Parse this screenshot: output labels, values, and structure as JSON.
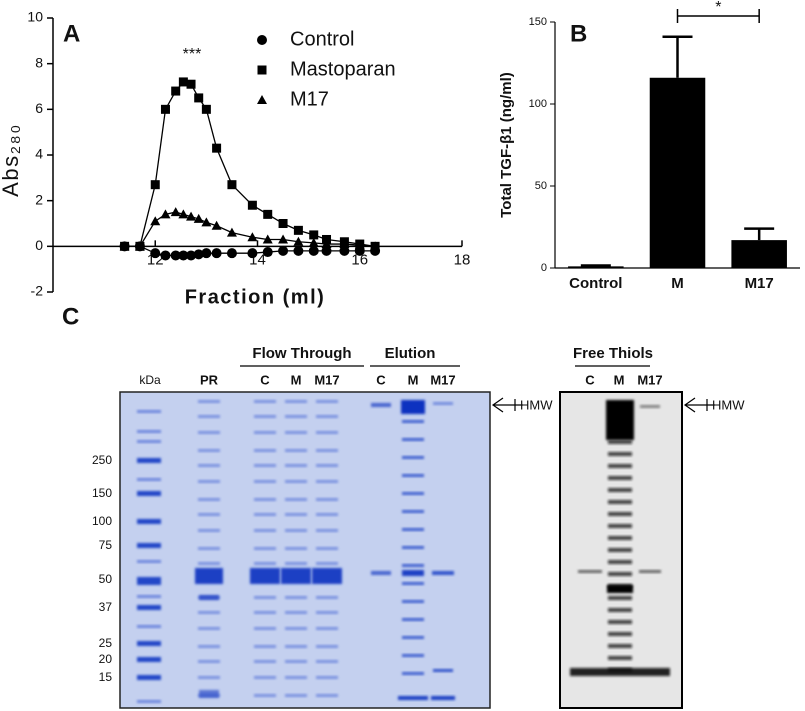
{
  "chart_data": [
    {
      "type": "line",
      "panel": "A",
      "annotation": "***",
      "xlabel": "Fraction (ml)",
      "ylabel": "Abs₂₈₀",
      "x": [
        11.4,
        11.7,
        12.0,
        12.2,
        12.4,
        12.55,
        12.7,
        12.85,
        13.0,
        13.2,
        13.5,
        13.9,
        14.2,
        14.5,
        14.8,
        15.1,
        15.35,
        15.7,
        16.0,
        16.3
      ],
      "series": [
        {
          "name": "Control",
          "marker": "circle",
          "color": "#000000",
          "values": [
            0,
            0,
            -0.3,
            -0.4,
            -0.4,
            -0.4,
            -0.4,
            -0.35,
            -0.3,
            -0.3,
            -0.3,
            -0.3,
            -0.25,
            -0.2,
            -0.2,
            -0.2,
            -0.2,
            -0.2,
            -0.2,
            -0.2
          ]
        },
        {
          "name": "Mastoparan",
          "marker": "square",
          "color": "#000000",
          "values": [
            0,
            0,
            2.7,
            6.0,
            6.8,
            7.2,
            7.1,
            6.5,
            6.0,
            4.3,
            2.7,
            1.8,
            1.4,
            1.0,
            0.7,
            0.5,
            0.3,
            0.2,
            0.1,
            0
          ]
        },
        {
          "name": "M17",
          "marker": "triangle",
          "color": "#000000",
          "values": [
            0,
            0,
            1.1,
            1.4,
            1.5,
            1.4,
            1.3,
            1.2,
            1.05,
            0.9,
            0.6,
            0.4,
            0.3,
            0.3,
            0.2,
            0.15,
            0.1,
            0.1,
            0.05,
            0
          ]
        }
      ],
      "xlim": [
        10,
        18
      ],
      "xticks": [
        12,
        14,
        16,
        18
      ],
      "ylim": [
        -2,
        10
      ],
      "yticks": [
        -2,
        0,
        2,
        4,
        6,
        8,
        10
      ]
    },
    {
      "type": "bar",
      "panel": "B",
      "annotation": "*",
      "ylabel": "Total TGF-β1 (ng/ml)",
      "categories": [
        "Control",
        "M",
        "M17"
      ],
      "values": [
        1,
        116,
        17
      ],
      "errors": [
        0.5,
        25,
        7
      ],
      "color": "#000000",
      "ylim": [
        0,
        150
      ],
      "yticks": [
        0,
        50,
        100,
        150
      ]
    }
  ],
  "gel": {
    "panel": "C",
    "groups": [
      "Flow Through",
      "Elution",
      "Free Thiols"
    ],
    "lanes": [
      "kDa",
      "PR",
      "C",
      "M",
      "M17",
      "C",
      "M",
      "M17"
    ],
    "blot_lanes": [
      "C",
      "M",
      "M17"
    ],
    "markers": [
      "250",
      "150",
      "100",
      "75",
      "50",
      "37",
      "25",
      "20",
      "15"
    ],
    "hmw": "HMW",
    "blot_hmw": "HMW"
  }
}
